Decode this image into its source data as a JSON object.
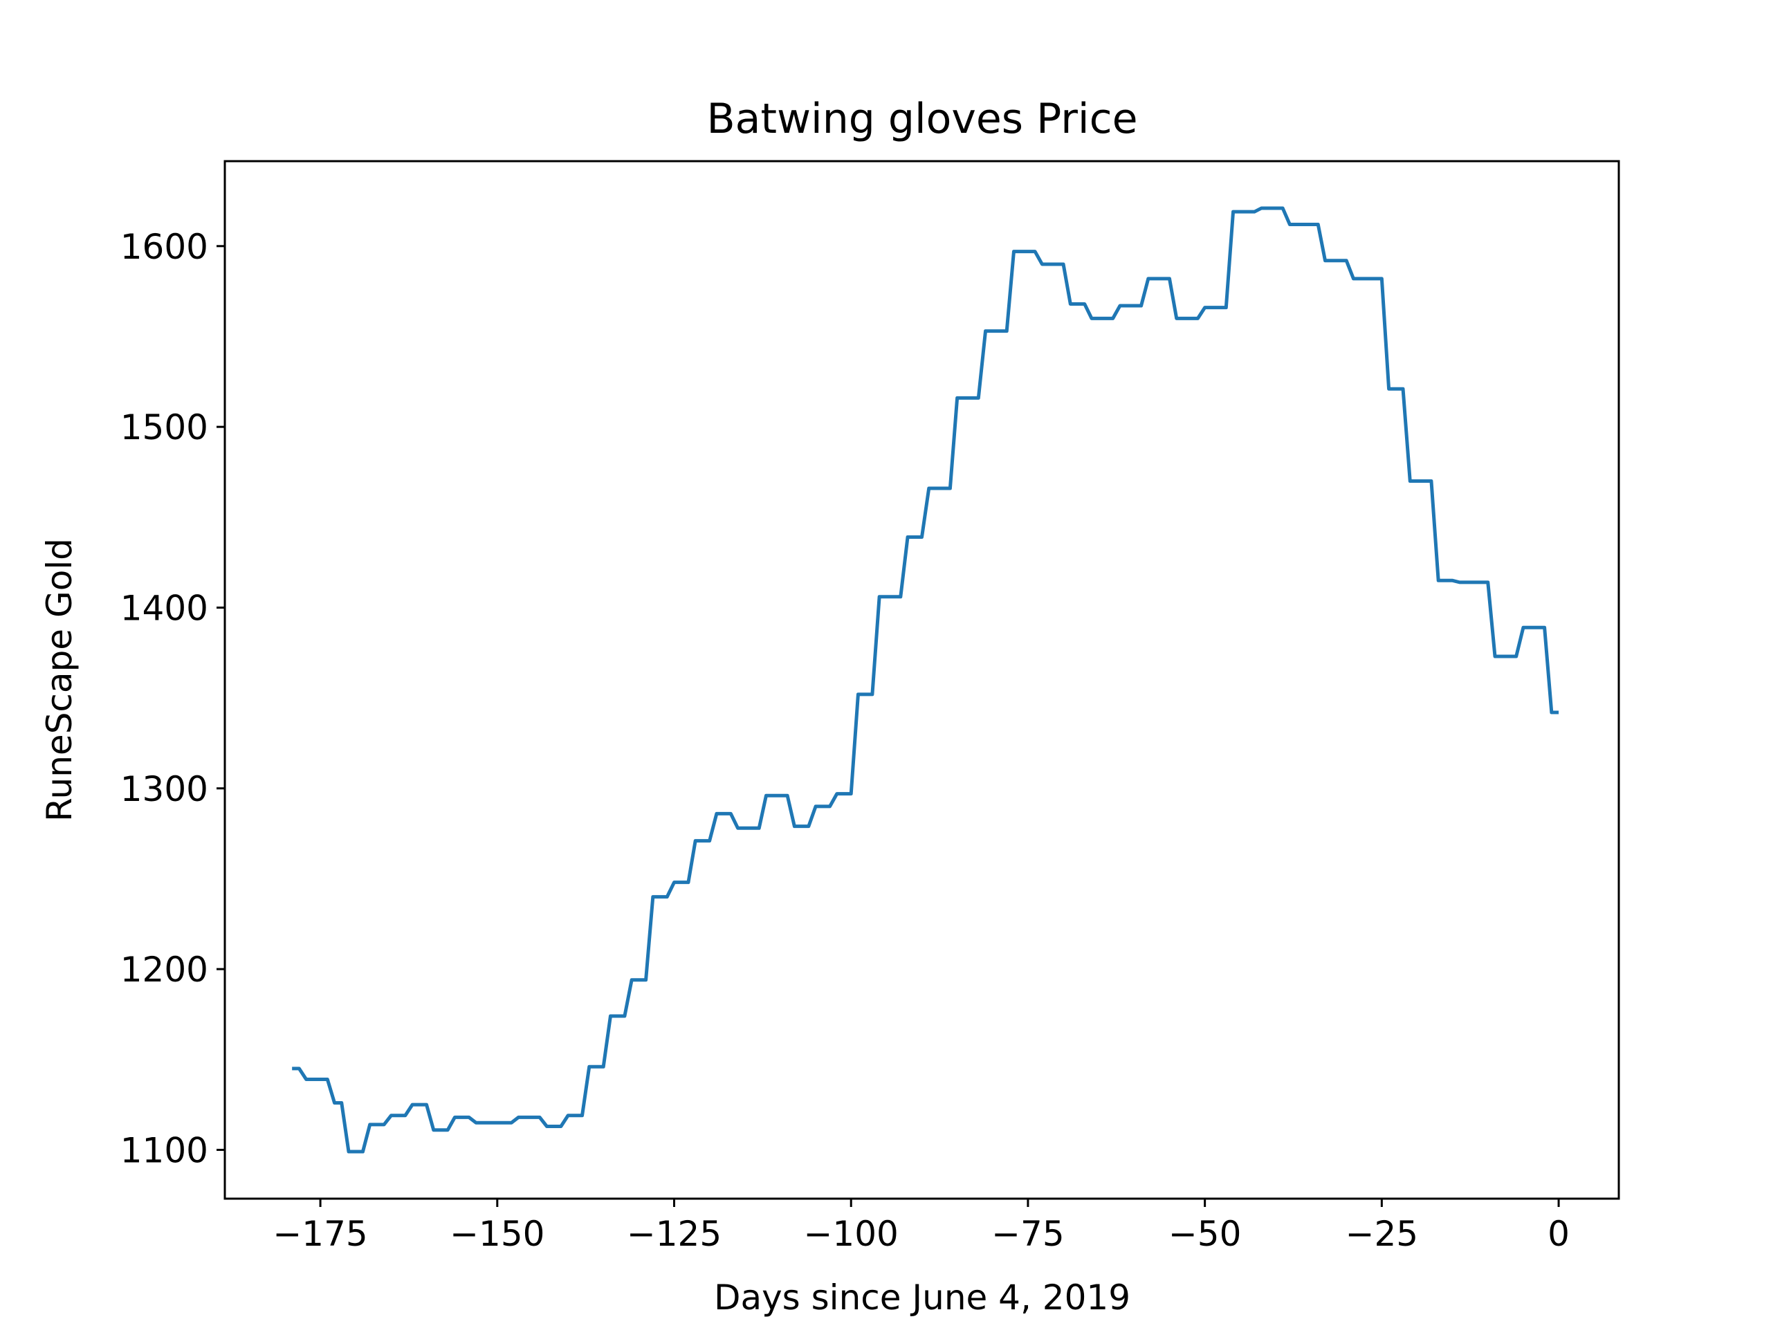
{
  "chart_data": {
    "type": "line",
    "title": "Batwing gloves Price",
    "xlabel": "Days since June 4, 2019",
    "ylabel": "RuneScape Gold",
    "xlim": [
      -188.5,
      8.5
    ],
    "ylim": [
      1073,
      1647
    ],
    "x_ticks": [
      -175,
      -150,
      -125,
      -100,
      -75,
      -50,
      -25,
      0
    ],
    "x_tick_labels": [
      "−175",
      "−150",
      "−125",
      "−100",
      "−75",
      "−50",
      "−25",
      "0"
    ],
    "y_ticks": [
      1100,
      1200,
      1300,
      1400,
      1500,
      1600
    ],
    "y_tick_labels": [
      "1100",
      "1200",
      "1300",
      "1400",
      "1500",
      "1600"
    ],
    "grid": false,
    "legend": "none",
    "line_color": "#1f77b4",
    "series": [
      {
        "x": [
          -179,
          -178,
          -177,
          -176,
          -175,
          -174,
          -173,
          -172,
          -171,
          -170,
          -169,
          -168,
          -167,
          -166,
          -165,
          -164,
          -163,
          -162,
          -161,
          -160,
          -159,
          -158,
          -157,
          -156,
          -155,
          -154,
          -153,
          -152,
          -151,
          -150,
          -149,
          -148,
          -147,
          -146,
          -145,
          -144,
          -143,
          -142,
          -141,
          -140,
          -139,
          -138,
          -137,
          -136,
          -135,
          -134,
          -133,
          -132,
          -131,
          -130,
          -129,
          -128,
          -127,
          -126,
          -125,
          -124,
          -123,
          -122,
          -121,
          -120,
          -119,
          -118,
          -117,
          -116,
          -115,
          -114,
          -113,
          -112,
          -111,
          -110,
          -109,
          -108,
          -107,
          -106,
          -105,
          -104,
          -103,
          -102,
          -101,
          -100,
          -99,
          -98,
          -97,
          -96,
          -95,
          -94,
          -93,
          -92,
          -91,
          -90,
          -89,
          -88,
          -87,
          -86,
          -85,
          -84,
          -83,
          -82,
          -81,
          -80,
          -79,
          -78,
          -77,
          -76,
          -75,
          -74,
          -73,
          -72,
          -71,
          -70,
          -69,
          -68,
          -67,
          -66,
          -65,
          -64,
          -63,
          -62,
          -61,
          -60,
          -59,
          -58,
          -57,
          -56,
          -55,
          -54,
          -53,
          -52,
          -51,
          -50,
          -49,
          -48,
          -47,
          -46,
          -45,
          -44,
          -43,
          -42,
          -41,
          -40,
          -39,
          -38,
          -37,
          -36,
          -35,
          -34,
          -33,
          -32,
          -31,
          -30,
          -29,
          -28,
          -27,
          -26,
          -25,
          -24,
          -23,
          -22,
          -21,
          -20,
          -19,
          -18,
          -17,
          -16,
          -15,
          -14,
          -13,
          -12,
          -11,
          -10,
          -9,
          -8,
          -7,
          -6,
          -5,
          -4,
          -3,
          -2,
          -1,
          0
        ],
        "values": [
          1145,
          1145,
          1139,
          1139,
          1139,
          1139,
          1126,
          1126,
          1099,
          1099,
          1099,
          1114,
          1114,
          1114,
          1119,
          1119,
          1119,
          1125,
          1125,
          1125,
          1111,
          1111,
          1111,
          1118,
          1118,
          1118,
          1115,
          1115,
          1115,
          1115,
          1115,
          1115,
          1118,
          1118,
          1118,
          1118,
          1113,
          1113,
          1113,
          1119,
          1119,
          1119,
          1146,
          1146,
          1146,
          1174,
          1174,
          1174,
          1194,
          1194,
          1194,
          1240,
          1240,
          1240,
          1248,
          1248,
          1248,
          1271,
          1271,
          1271,
          1286,
          1286,
          1286,
          1278,
          1278,
          1278,
          1278,
          1296,
          1296,
          1296,
          1296,
          1279,
          1279,
          1279,
          1290,
          1290,
          1290,
          1297,
          1297,
          1297,
          1352,
          1352,
          1352,
          1406,
          1406,
          1406,
          1406,
          1439,
          1439,
          1439,
          1466,
          1466,
          1466,
          1466,
          1516,
          1516,
          1516,
          1516,
          1553,
          1553,
          1553,
          1553,
          1597,
          1597,
          1597,
          1597,
          1590,
          1590,
          1590,
          1590,
          1568,
          1568,
          1568,
          1560,
          1560,
          1560,
          1560,
          1567,
          1567,
          1567,
          1567,
          1582,
          1582,
          1582,
          1582,
          1560,
          1560,
          1560,
          1560,
          1566,
          1566,
          1566,
          1566,
          1619,
          1619,
          1619,
          1619,
          1621,
          1621,
          1621,
          1621,
          1612,
          1612,
          1612,
          1612,
          1612,
          1592,
          1592,
          1592,
          1592,
          1582,
          1582,
          1582,
          1582,
          1582,
          1521,
          1521,
          1521,
          1470,
          1470,
          1470,
          1470,
          1415,
          1415,
          1415,
          1414,
          1414,
          1414,
          1414,
          1414,
          1373,
          1373,
          1373,
          1373,
          1389,
          1389,
          1389,
          1389,
          1342,
          1342
        ]
      }
    ]
  }
}
